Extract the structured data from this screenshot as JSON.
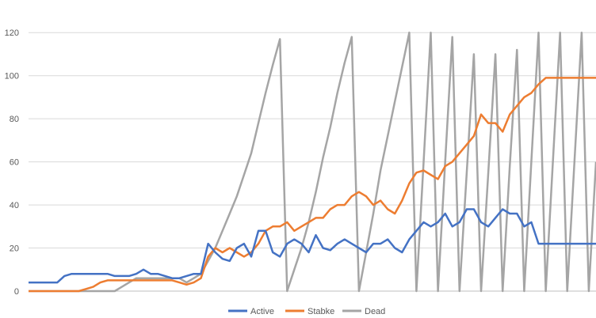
{
  "chart_data": {
    "type": "line",
    "title": "",
    "xlabel": "",
    "ylabel": "",
    "ylim": [
      0,
      130
    ],
    "yticks": [
      0,
      20,
      40,
      60,
      80,
      100,
      120
    ],
    "grid": true,
    "legend_position": "bottom",
    "x_count": 80,
    "series": [
      {
        "name": "Active",
        "color": "#4472C4",
        "values": [
          4,
          4,
          4,
          4,
          4,
          7,
          8,
          8,
          8,
          8,
          8,
          8,
          7,
          7,
          7,
          8,
          10,
          8,
          8,
          7,
          6,
          6,
          7,
          8,
          8,
          22,
          18,
          15,
          14,
          20,
          22,
          16,
          28,
          28,
          18,
          16,
          22,
          24,
          22,
          18,
          26,
          20,
          19,
          22,
          24,
          22,
          20,
          18,
          22,
          22,
          24,
          20,
          18,
          24,
          28,
          32,
          30,
          32,
          36,
          30,
          32,
          38,
          38,
          32,
          30,
          34,
          38,
          36,
          36,
          30,
          32,
          22,
          22,
          22,
          22,
          22,
          22,
          22,
          22,
          22
        ]
      },
      {
        "name": "Stabke",
        "color": "#ED7D31",
        "values": [
          0,
          0,
          0,
          0,
          0,
          0,
          0,
          0,
          1,
          2,
          4,
          5,
          5,
          5,
          5,
          5,
          5,
          5,
          5,
          5,
          5,
          4,
          3,
          4,
          6,
          16,
          20,
          18,
          20,
          18,
          16,
          18,
          22,
          28,
          30,
          30,
          32,
          28,
          30,
          32,
          34,
          34,
          38,
          40,
          40,
          44,
          46,
          44,
          40,
          42,
          38,
          36,
          42,
          50,
          55,
          56,
          54,
          52,
          58,
          60,
          64,
          68,
          72,
          82,
          78,
          78,
          74,
          82,
          86,
          90,
          92,
          96,
          99,
          99,
          99,
          99,
          99,
          99,
          99,
          99
        ]
      },
      {
        "name": "Dead",
        "color": "#A5A5A5",
        "values": [
          0,
          0,
          0,
          0,
          0,
          0,
          0,
          0,
          0,
          0,
          0,
          0,
          0,
          2,
          4,
          6,
          6,
          6,
          6,
          6,
          6,
          6,
          4,
          6,
          8,
          14,
          20,
          28,
          36,
          44,
          54,
          64,
          78,
          92,
          105,
          117,
          0,
          10,
          20,
          32,
          46,
          62,
          76,
          92,
          106,
          118,
          0,
          18,
          36,
          56,
          72,
          88,
          104,
          120,
          0,
          60,
          120,
          0,
          60,
          118,
          0,
          55,
          110,
          0,
          55,
          110,
          0,
          58,
          112,
          0,
          60,
          120,
          0,
          60,
          120,
          0,
          60,
          120,
          0,
          60
        ]
      }
    ]
  }
}
